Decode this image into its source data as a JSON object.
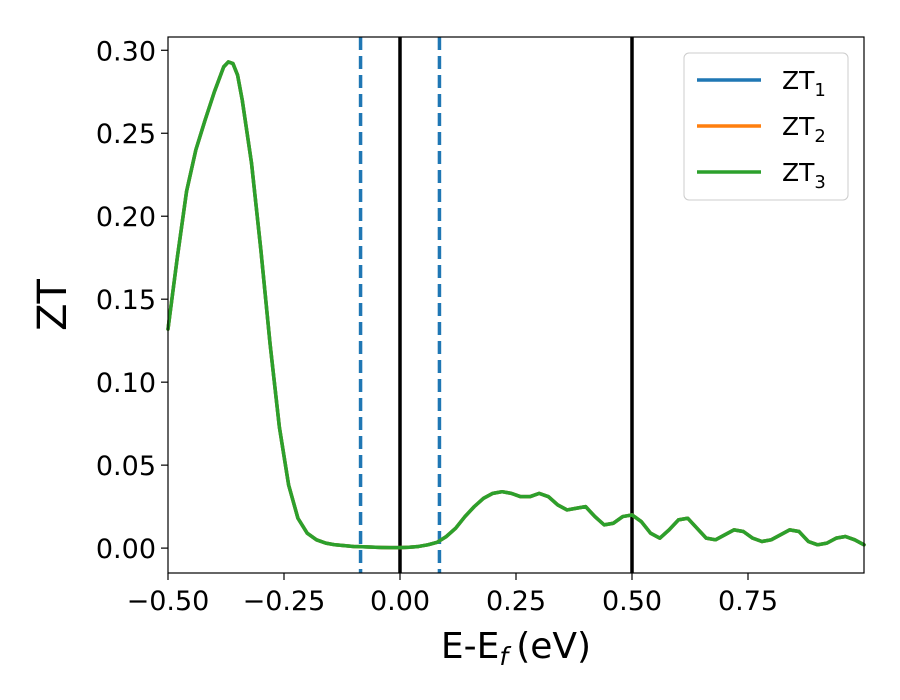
{
  "chart_data": {
    "type": "line",
    "xlabel": "E-E",
    "xlabel_sub": "f",
    "xlabel_unit": "(eV)",
    "ylabel": "ZT",
    "xlim": [
      -0.5,
      1.0
    ],
    "ylim": [
      -0.015,
      0.308
    ],
    "xticks": [
      -0.5,
      -0.25,
      0.0,
      0.25,
      0.5,
      0.75
    ],
    "xtick_labels": [
      "−0.50",
      "−0.25",
      "0.00",
      "0.25",
      "0.50",
      "0.75"
    ],
    "yticks": [
      0.0,
      0.05,
      0.1,
      0.15,
      0.2,
      0.25,
      0.3
    ],
    "ytick_labels": [
      "0.00",
      "0.05",
      "0.10",
      "0.15",
      "0.20",
      "0.25",
      "0.30"
    ],
    "grid": false,
    "legend_position": "top-right",
    "vertical_lines": [
      {
        "x": -0.085,
        "style": "dashed",
        "color": "#1f77b4"
      },
      {
        "x": 0.085,
        "style": "dashed",
        "color": "#1f77b4"
      },
      {
        "x": 0.0,
        "style": "solid",
        "color": "#000000"
      },
      {
        "x": 0.5,
        "style": "solid",
        "color": "#000000"
      }
    ],
    "x": [
      -0.5,
      -0.48,
      -0.46,
      -0.44,
      -0.42,
      -0.4,
      -0.38,
      -0.37,
      -0.36,
      -0.35,
      -0.34,
      -0.32,
      -0.3,
      -0.28,
      -0.26,
      -0.24,
      -0.22,
      -0.2,
      -0.18,
      -0.16,
      -0.14,
      -0.12,
      -0.1,
      -0.08,
      -0.06,
      -0.04,
      -0.02,
      0.0,
      0.02,
      0.04,
      0.06,
      0.08,
      0.1,
      0.12,
      0.14,
      0.16,
      0.18,
      0.2,
      0.22,
      0.24,
      0.26,
      0.28,
      0.3,
      0.32,
      0.34,
      0.36,
      0.38,
      0.4,
      0.42,
      0.44,
      0.46,
      0.48,
      0.5,
      0.52,
      0.54,
      0.56,
      0.58,
      0.6,
      0.62,
      0.64,
      0.66,
      0.68,
      0.7,
      0.72,
      0.74,
      0.76,
      0.78,
      0.8,
      0.82,
      0.84,
      0.86,
      0.88,
      0.9,
      0.92,
      0.94,
      0.96,
      0.98,
      1.0
    ],
    "series": [
      {
        "name": "ZT",
        "sub": "1",
        "color": "#1f77b4",
        "values": [
          0.132,
          0.175,
          0.215,
          0.24,
          0.258,
          0.275,
          0.29,
          0.293,
          0.292,
          0.285,
          0.27,
          0.232,
          0.18,
          0.123,
          0.073,
          0.038,
          0.018,
          0.009,
          0.005,
          0.003,
          0.002,
          0.0015,
          0.001,
          0.0008,
          0.0006,
          0.0004,
          0.0003,
          0.0003,
          0.0005,
          0.001,
          0.002,
          0.0035,
          0.007,
          0.012,
          0.019,
          0.025,
          0.03,
          0.033,
          0.034,
          0.033,
          0.031,
          0.031,
          0.033,
          0.031,
          0.026,
          0.023,
          0.024,
          0.025,
          0.019,
          0.014,
          0.015,
          0.019,
          0.02,
          0.016,
          0.009,
          0.006,
          0.011,
          0.017,
          0.018,
          0.012,
          0.006,
          0.005,
          0.008,
          0.011,
          0.01,
          0.006,
          0.004,
          0.005,
          0.008,
          0.011,
          0.01,
          0.004,
          0.002,
          0.003,
          0.006,
          0.007,
          0.005,
          0.002
        ]
      },
      {
        "name": "ZT",
        "sub": "2",
        "color": "#ff7f0e",
        "values": [
          0.132,
          0.175,
          0.215,
          0.24,
          0.258,
          0.275,
          0.29,
          0.293,
          0.292,
          0.285,
          0.27,
          0.232,
          0.18,
          0.123,
          0.073,
          0.038,
          0.018,
          0.009,
          0.005,
          0.003,
          0.002,
          0.0015,
          0.001,
          0.0008,
          0.0006,
          0.0004,
          0.0003,
          0.0003,
          0.0005,
          0.001,
          0.002,
          0.0035,
          0.007,
          0.012,
          0.019,
          0.025,
          0.03,
          0.033,
          0.034,
          0.033,
          0.031,
          0.031,
          0.033,
          0.031,
          0.026,
          0.023,
          0.024,
          0.025,
          0.019,
          0.014,
          0.015,
          0.019,
          0.02,
          0.016,
          0.009,
          0.006,
          0.011,
          0.017,
          0.018,
          0.012,
          0.006,
          0.005,
          0.008,
          0.011,
          0.01,
          0.006,
          0.004,
          0.005,
          0.008,
          0.011,
          0.01,
          0.004,
          0.002,
          0.003,
          0.006,
          0.007,
          0.005,
          0.002
        ]
      },
      {
        "name": "ZT",
        "sub": "3",
        "color": "#2ca02c",
        "values": [
          0.132,
          0.175,
          0.215,
          0.24,
          0.258,
          0.275,
          0.29,
          0.293,
          0.292,
          0.285,
          0.27,
          0.232,
          0.18,
          0.123,
          0.073,
          0.038,
          0.018,
          0.009,
          0.005,
          0.003,
          0.002,
          0.0015,
          0.001,
          0.0008,
          0.0006,
          0.0004,
          0.0003,
          0.0003,
          0.0005,
          0.001,
          0.002,
          0.0035,
          0.007,
          0.012,
          0.019,
          0.025,
          0.03,
          0.033,
          0.034,
          0.033,
          0.031,
          0.031,
          0.033,
          0.031,
          0.026,
          0.023,
          0.024,
          0.025,
          0.019,
          0.014,
          0.015,
          0.019,
          0.02,
          0.016,
          0.009,
          0.006,
          0.011,
          0.017,
          0.018,
          0.012,
          0.006,
          0.005,
          0.008,
          0.011,
          0.01,
          0.006,
          0.004,
          0.005,
          0.008,
          0.011,
          0.01,
          0.004,
          0.002,
          0.003,
          0.006,
          0.007,
          0.005,
          0.002
        ]
      }
    ]
  }
}
